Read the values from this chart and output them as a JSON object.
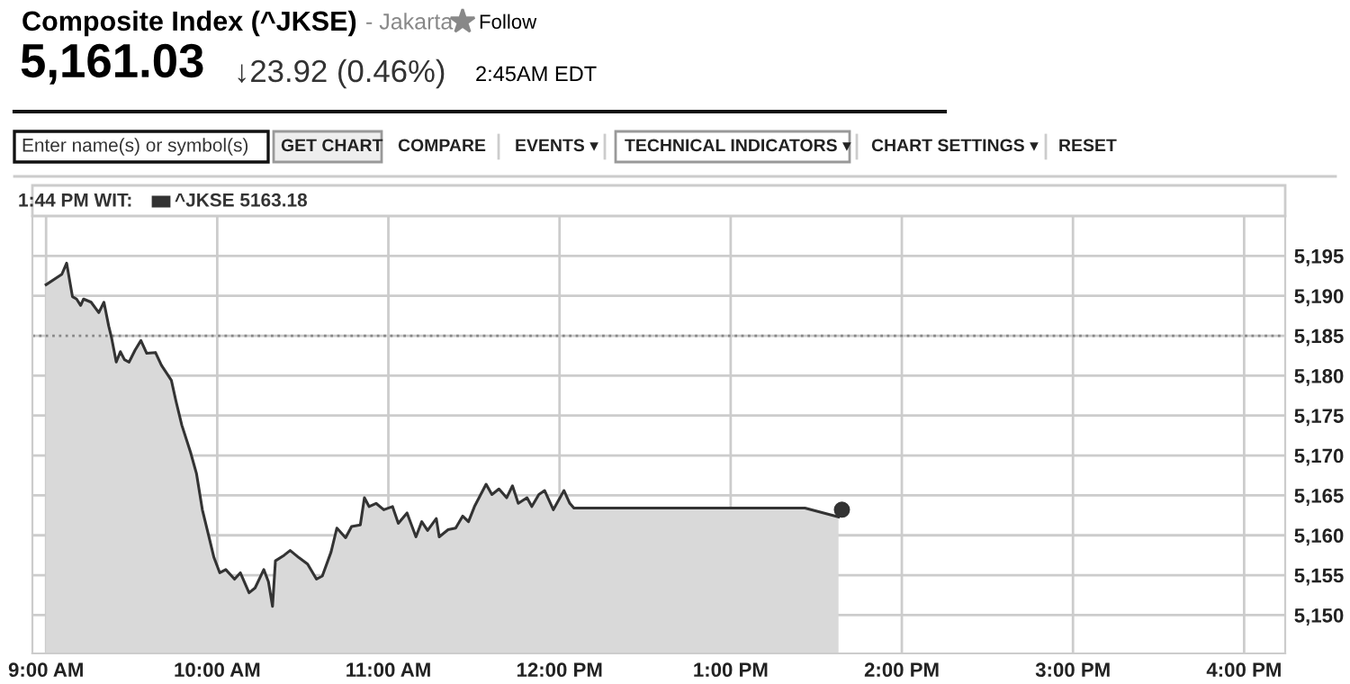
{
  "chart_data": {
    "type": "area",
    "title": "Composite Index (^JKSE)",
    "subtitle": "- Jakarta",
    "annotations": [
      "Follow",
      "5,161.03",
      "↓23.92 (0.46%)",
      "2:45AM EDT",
      "Enter name(s) or symbol(s)",
      "GET CHART",
      "COMPARE",
      "EVENTS ▾",
      "TECHNICAL INDICATORS ▾",
      "CHART SETTINGS ▾",
      "RESET",
      "1:44 PM WIT:"
    ],
    "series": [
      {
        "name": "^JKSE 5163.18",
        "color": "#333333",
        "x": [
          9.0,
          9.092,
          9.12,
          9.154,
          9.178,
          9.202,
          9.219,
          9.263,
          9.308,
          9.338,
          9.366,
          9.383,
          9.41,
          9.434,
          9.458,
          9.485,
          9.52,
          9.554,
          9.588,
          9.639,
          9.674,
          9.708,
          9.732,
          9.759,
          9.793,
          9.844,
          9.879,
          9.913,
          9.947,
          9.981,
          10.015,
          10.05,
          10.101,
          10.135,
          10.186,
          10.221,
          10.272,
          10.299,
          10.323,
          10.34,
          10.391,
          10.426,
          10.477,
          10.528,
          10.58,
          10.614,
          10.665,
          10.699,
          10.75,
          10.785,
          10.836,
          10.86,
          10.887,
          10.928,
          10.973,
          11.024,
          11.058,
          11.109,
          11.161,
          11.195,
          11.229,
          11.28,
          11.297,
          11.349,
          11.393,
          11.434,
          11.468,
          11.503,
          11.571,
          11.605,
          11.646,
          11.691,
          11.725,
          11.759,
          11.81,
          11.838,
          11.879,
          11.913,
          11.964,
          12.026,
          12.06,
          12.084,
          13.434,
          13.63
        ],
        "values": [
          5191.4,
          5192.7,
          5194.1,
          5189.9,
          5189.6,
          5188.8,
          5189.6,
          5189.2,
          5187.9,
          5189.2,
          5186.2,
          5184.7,
          5181.7,
          5183.0,
          5182.0,
          5181.7,
          5183.2,
          5184.4,
          5182.8,
          5182.9,
          5181.3,
          5180.2,
          5179.4,
          5176.8,
          5173.8,
          5170.4,
          5167.7,
          5163.2,
          5160.2,
          5157.2,
          5155.3,
          5155.7,
          5154.5,
          5155.3,
          5152.8,
          5153.4,
          5155.7,
          5154.2,
          5151.1,
          5156.8,
          5157.5,
          5158.1,
          5157.2,
          5156.4,
          5154.5,
          5154.9,
          5157.9,
          5160.9,
          5159.7,
          5161.1,
          5161.3,
          5164.7,
          5163.6,
          5164.0,
          5163.2,
          5163.6,
          5161.5,
          5162.8,
          5159.8,
          5161.7,
          5160.6,
          5162.1,
          5159.8,
          5160.7,
          5160.9,
          5162.4,
          5161.7,
          5163.6,
          5166.4,
          5165.1,
          5165.8,
          5164.7,
          5166.2,
          5164.0,
          5164.7,
          5163.6,
          5165.1,
          5165.6,
          5163.2,
          5165.6,
          5164.0,
          5163.4,
          5163.4,
          5162.3
        ]
      },
      {
        "type": "scatter",
        "color": "#333333",
        "x": [
          13.65
        ],
        "values": [
          5163.2
        ]
      }
    ],
    "xlim": [
      8.92,
      16.24
    ],
    "ylim": [
      5145.2,
      5200
    ],
    "xticks": [
      {
        "value": 9,
        "label": "9:00 AM"
      },
      {
        "value": 10,
        "label": "10:00 AM"
      },
      {
        "value": 11,
        "label": "11:00 AM"
      },
      {
        "value": 12,
        "label": "12:00 PM"
      },
      {
        "value": 13,
        "label": "1:00 PM"
      },
      {
        "value": 14,
        "label": "2:00 PM"
      },
      {
        "value": 15,
        "label": "3:00 PM"
      },
      {
        "value": 16,
        "label": "4:00 PM"
      }
    ],
    "yticks": [
      {
        "value": 5150,
        "label": "5,150"
      },
      {
        "value": 5155,
        "label": "5,155"
      },
      {
        "value": 5160,
        "label": "5,160"
      },
      {
        "value": 5165,
        "label": "5,165"
      },
      {
        "value": 5170,
        "label": "5,170"
      },
      {
        "value": 5175,
        "label": "5,175"
      },
      {
        "value": 5180,
        "label": "5,180"
      },
      {
        "value": 5185,
        "label": "5,185"
      },
      {
        "value": 5190,
        "label": "5,190"
      },
      {
        "value": 5195,
        "label": "5,195"
      }
    ],
    "ref_lines": [
      {
        "axis": "y",
        "value": 5185,
        "color": "#888888",
        "line_style": "dotted"
      }
    ],
    "grid": true,
    "legend": "top left"
  }
}
